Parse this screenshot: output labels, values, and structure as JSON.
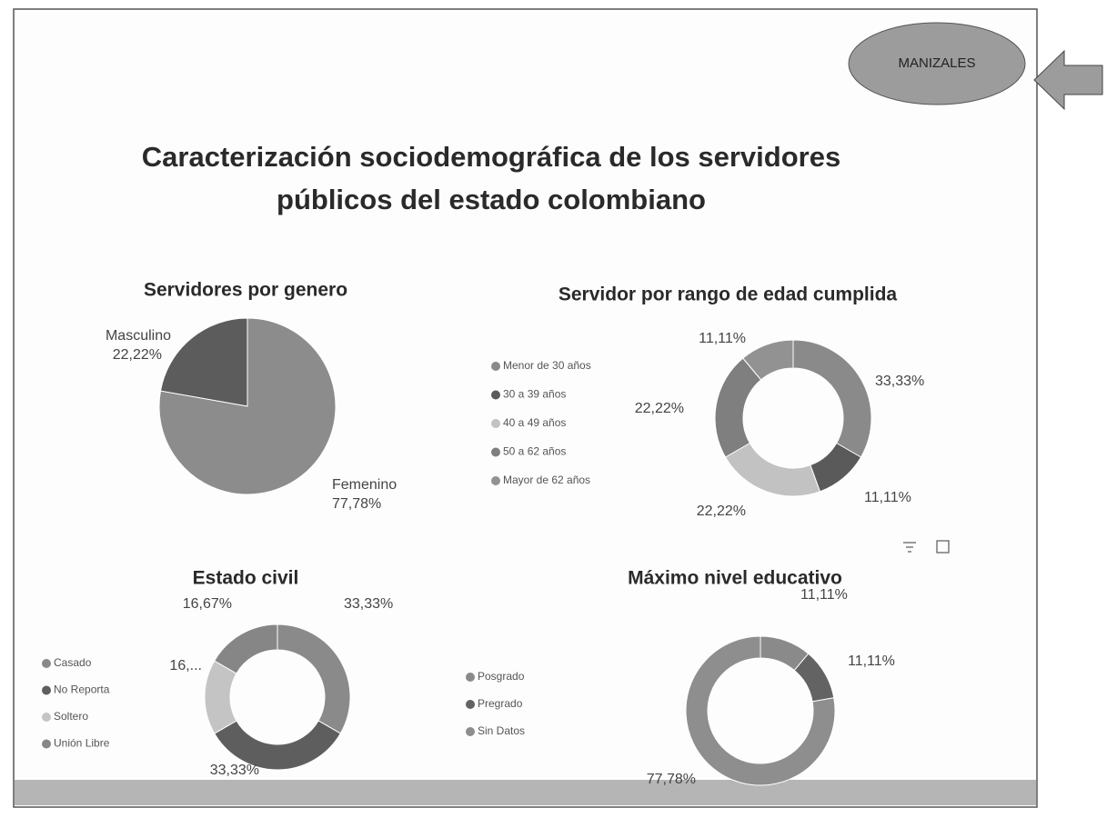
{
  "header": {
    "badge": "MANIZALES",
    "title_line1": "Caracterización sociodemográfica de los servidores",
    "title_line2": "públicos del estado colombiano"
  },
  "chart_data": [
    {
      "type": "pie",
      "title": "Servidores por genero",
      "categories": [
        "Masculino",
        "Femenino"
      ],
      "values": [
        22.22,
        77.78
      ],
      "value_labels": [
        "22,22%",
        "77,78%"
      ],
      "colors": [
        "#5c5c5c",
        "#8c8c8c"
      ]
    },
    {
      "type": "donut",
      "title": "Servidor por rango de edad cumplida",
      "legend": "left",
      "categories": [
        "Menor de 30 años",
        "30 a 39 años",
        "40 a 49 años",
        "50 a 62 años",
        "Mayor de 62 años"
      ],
      "values": [
        33.33,
        11.11,
        22.22,
        22.22,
        11.11
      ],
      "value_labels": [
        "33,33%",
        "11,11%",
        "22,22%",
        "22,22%",
        "11,11%"
      ],
      "colors": [
        "#8a8a8a",
        "#5a5a5a",
        "#c2c2c2",
        "#7f7f7f",
        "#929292"
      ]
    },
    {
      "type": "donut",
      "title": "Estado civil",
      "legend": "left",
      "categories": [
        "Casado",
        "No Reporta",
        "Soltero",
        "Unión Libre"
      ],
      "values": [
        33.33,
        33.33,
        16.67,
        16.67
      ],
      "value_labels": [
        "33,33%",
        "33,33%",
        "16,...",
        "16,67%"
      ],
      "colors": [
        "#8a8a8a",
        "#5e5e5e",
        "#c4c4c4",
        "#868686"
      ]
    },
    {
      "type": "donut",
      "title": "Máximo nivel educativo",
      "legend": "left",
      "categories": [
        "Posgrado",
        "Pregrado",
        "Sin Datos"
      ],
      "values": [
        11.11,
        11.11,
        77.78
      ],
      "value_labels": [
        "11,11%",
        "11,11%",
        "77,78%"
      ],
      "colors": [
        "#8a8a8a",
        "#636363",
        "#8e8e8e"
      ]
    }
  ]
}
